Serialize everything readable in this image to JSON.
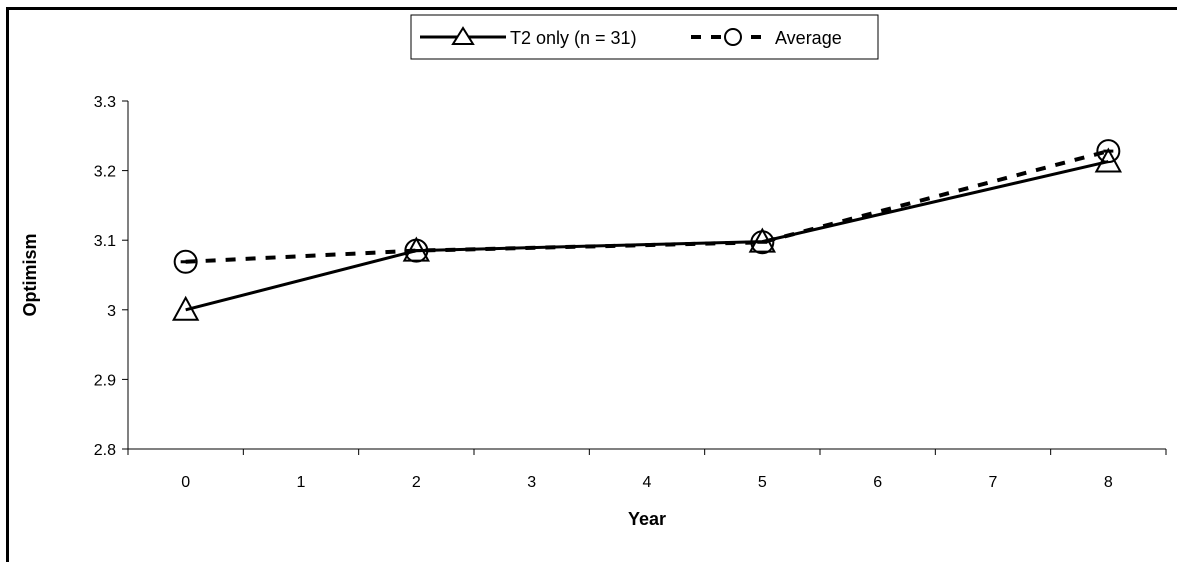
{
  "chart_data": {
    "type": "line",
    "xlabel": "Year",
    "ylabel": "Optimism",
    "ylim": [
      2.8,
      3.3
    ],
    "yticks": [
      "2.8",
      "2.9",
      "3",
      "3.1",
      "3.2",
      "3.3"
    ],
    "xticks": [
      "0",
      "1",
      "2",
      "3",
      "4",
      "5",
      "6",
      "7",
      "8"
    ],
    "grid": false,
    "legend_position": "top-center",
    "series": [
      {
        "name": "T2 only (n = 31)",
        "style": "solid",
        "marker": "triangle",
        "color": "#000000",
        "x": [
          0,
          2,
          5,
          8
        ],
        "y": [
          3.0,
          3.085,
          3.098,
          3.213
        ]
      },
      {
        "name": "Average",
        "style": "dashed",
        "marker": "circle",
        "color": "#000000",
        "x": [
          0,
          2,
          5,
          8
        ],
        "y": [
          3.069,
          3.085,
          3.097,
          3.228
        ]
      }
    ]
  }
}
